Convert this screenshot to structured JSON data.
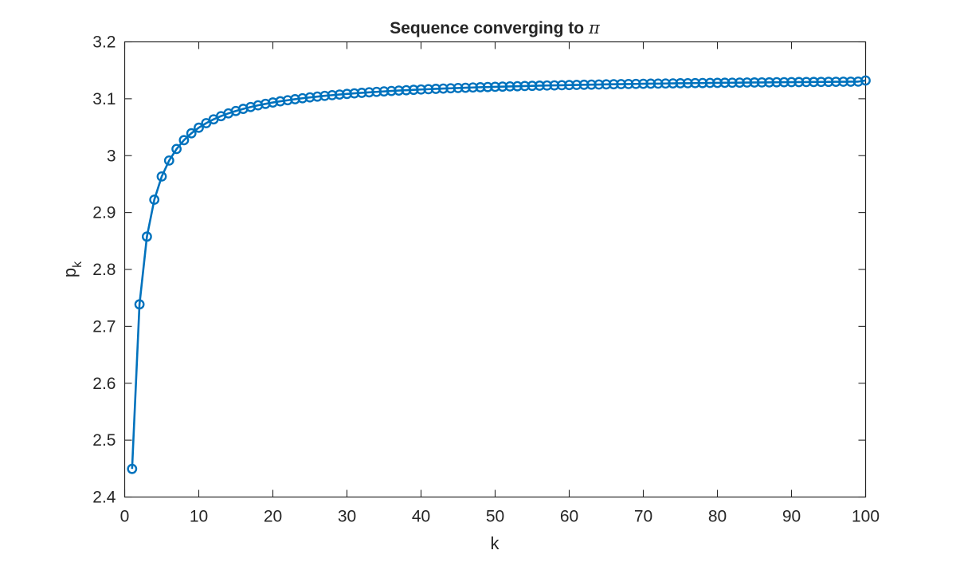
{
  "figure": {
    "title": "Sequence converging to π",
    "title_main": "Sequence converging to ",
    "title_symbol": "π",
    "xlabel": "k",
    "ylabel_base": "p",
    "ylabel_sub": "k"
  },
  "colors": {
    "series": "#0072BD",
    "axes": "#262626",
    "background": "#ffffff"
  },
  "chart_data": {
    "type": "line",
    "title": "Sequence converging to π",
    "xlabel": "k",
    "ylabel": "p_k",
    "xlim": [
      0,
      100
    ],
    "ylim": [
      2.4,
      3.2
    ],
    "xticks": [
      0,
      10,
      20,
      30,
      40,
      50,
      60,
      70,
      80,
      90,
      100
    ],
    "xtick_labels": [
      "0",
      "10",
      "20",
      "30",
      "40",
      "50",
      "60",
      "70",
      "80",
      "90",
      "100"
    ],
    "yticks": [
      2.4,
      2.5,
      2.6,
      2.7,
      2.8,
      2.9,
      3.0,
      3.1,
      3.2
    ],
    "ytick_labels": [
      "2.4",
      "2.5",
      "2.6",
      "2.7",
      "2.8",
      "2.9",
      "3",
      "3.1",
      "3.2"
    ],
    "grid": false,
    "legend": null,
    "marker": "o",
    "series": [
      {
        "name": "p_k",
        "x": [
          1,
          2,
          3,
          4,
          5,
          6,
          7,
          8,
          9,
          10,
          11,
          12,
          13,
          14,
          15,
          16,
          17,
          18,
          19,
          20,
          21,
          22,
          23,
          24,
          25,
          26,
          27,
          28,
          29,
          30,
          31,
          32,
          33,
          34,
          35,
          36,
          37,
          38,
          39,
          40,
          41,
          42,
          43,
          44,
          45,
          46,
          47,
          48,
          49,
          50,
          51,
          52,
          53,
          54,
          55,
          56,
          57,
          58,
          59,
          60,
          61,
          62,
          63,
          64,
          65,
          66,
          67,
          68,
          69,
          70,
          71,
          72,
          73,
          74,
          75,
          76,
          77,
          78,
          79,
          80,
          81,
          82,
          83,
          84,
          85,
          86,
          87,
          88,
          89,
          90,
          91,
          92,
          93,
          94,
          95,
          96,
          97,
          98,
          99,
          100
        ],
        "values": [
          2.4495,
          2.7386,
          2.8577,
          2.9226,
          2.9634,
          2.9914,
          3.0117,
          3.0272,
          3.0393,
          3.0491,
          3.0571,
          3.0638,
          3.0694,
          3.0743,
          3.0785,
          3.0822,
          3.0855,
          3.0884,
          3.091,
          3.0934,
          3.0955,
          3.0974,
          3.0992,
          3.1009,
          3.1024,
          3.1038,
          3.1051,
          3.1063,
          3.1074,
          3.1085,
          3.1095,
          3.1104,
          3.1113,
          3.1121,
          3.1129,
          3.1137,
          3.1144,
          3.115,
          3.1157,
          3.1163,
          3.1168,
          3.1174,
          3.1179,
          3.1184,
          3.1189,
          3.1193,
          3.1198,
          3.1202,
          3.1206,
          3.121,
          3.1213,
          3.1217,
          3.122,
          3.1224,
          3.1227,
          3.123,
          3.1233,
          3.1235,
          3.1238,
          3.1241,
          3.1243,
          3.1246,
          3.1248,
          3.125,
          3.1253,
          3.1255,
          3.1257,
          3.1259,
          3.1261,
          3.1263,
          3.1265,
          3.1266,
          3.1268,
          3.127,
          3.1272,
          3.1273,
          3.1275,
          3.1276,
          3.1278,
          3.1279,
          3.1281,
          3.1282,
          3.1283,
          3.1285,
          3.1286,
          3.1287,
          3.1288,
          3.129,
          3.1291,
          3.1292,
          3.1293,
          3.1294,
          3.1295,
          3.1296,
          3.1297,
          3.1298,
          3.1299,
          3.13,
          3.1301,
          3.1321
        ]
      }
    ]
  }
}
